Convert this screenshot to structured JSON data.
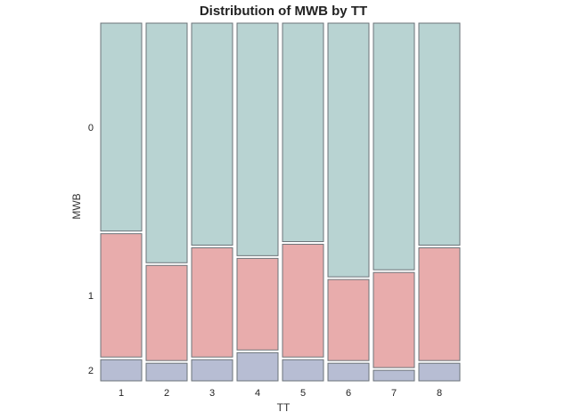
{
  "chart_data": {
    "type": "bar",
    "title": "Distribution of MWB by TT",
    "xlabel": "TT",
    "ylabel": "MWB",
    "categories": [
      "1",
      "2",
      "3",
      "4",
      "5",
      "6",
      "7",
      "8"
    ],
    "category_widths": [
      1,
      1,
      1,
      1,
      1,
      1,
      1,
      1
    ],
    "series": [
      {
        "name": "0",
        "values": [
          0.59,
          0.68,
          0.63,
          0.66,
          0.62,
          0.72,
          0.7,
          0.63
        ],
        "color": "#b8d3d2"
      },
      {
        "name": "1",
        "values": [
          0.35,
          0.27,
          0.31,
          0.26,
          0.32,
          0.23,
          0.27,
          0.32
        ],
        "color": "#e8acac"
      },
      {
        "name": "2",
        "values": [
          0.06,
          0.05,
          0.06,
          0.08,
          0.06,
          0.05,
          0.03,
          0.05
        ],
        "color": "#b7bdd3"
      }
    ],
    "y_tick_labels": [
      "0",
      "1",
      "2"
    ],
    "stacked": true,
    "normalized": true,
    "ylim": [
      0,
      1
    ],
    "grid": false,
    "legend": "none",
    "border_color": "#6b7378"
  }
}
